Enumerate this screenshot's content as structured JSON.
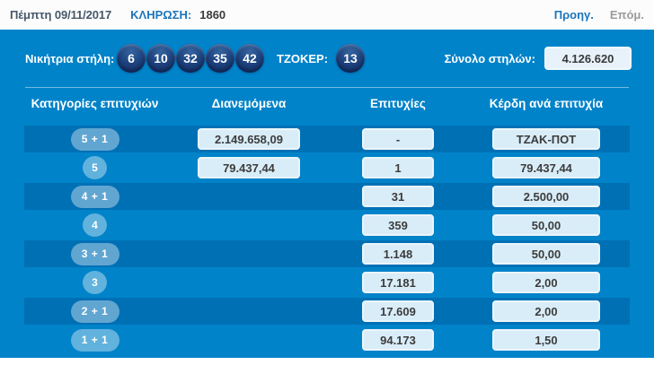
{
  "topbar": {
    "date": "Πέμπτη 09/11/2017",
    "draw_label": "ΚΛΗΡΩΣΗ:",
    "draw_number": "1860",
    "prev_label": "Προηγ.",
    "next_label": "Επόμ."
  },
  "panel": {
    "winning_label": "Νικήτρια στήλη:",
    "numbers": [
      "6",
      "10",
      "32",
      "35",
      "42"
    ],
    "tzoker_label": "ΤΖΟΚΕΡ:",
    "tzoker_number": "13",
    "total_label": "Σύνολο στηλών:",
    "total_value": "4.126.620"
  },
  "table": {
    "headers": [
      "Κατηγορίες επιτυχιών",
      "Διανεμόμενα",
      "Επιτυχίες",
      "Κέρδη ανά επιτυχία"
    ],
    "rows": [
      {
        "category": "5 + 1",
        "distributed": "2.149.658,09",
        "winners": "-",
        "prize": "ΤΖΑΚ-ΠΟΤ"
      },
      {
        "category": "5",
        "distributed": "79.437,44",
        "winners": "1",
        "prize": "79.437,44"
      },
      {
        "category": "4 + 1",
        "distributed": "",
        "winners": "31",
        "prize": "2.500,00"
      },
      {
        "category": "4",
        "distributed": "",
        "winners": "359",
        "prize": "50,00"
      },
      {
        "category": "3 + 1",
        "distributed": "",
        "winners": "1.148",
        "prize": "50,00"
      },
      {
        "category": "3",
        "distributed": "",
        "winners": "17.181",
        "prize": "2,00"
      },
      {
        "category": "2 + 1",
        "distributed": "",
        "winners": "17.609",
        "prize": "2,00"
      },
      {
        "category": "1 + 1",
        "distributed": "",
        "winners": "94.173",
        "prize": "1,50"
      }
    ]
  },
  "colors": {
    "panel_blue": "#0083c9",
    "stripe_blue": "#0070b5",
    "ball_navy": "#1e4380",
    "box_fill": "#d9edf8",
    "link_blue": "#1c75bc",
    "topbar_bg": "#fcfcfc"
  }
}
